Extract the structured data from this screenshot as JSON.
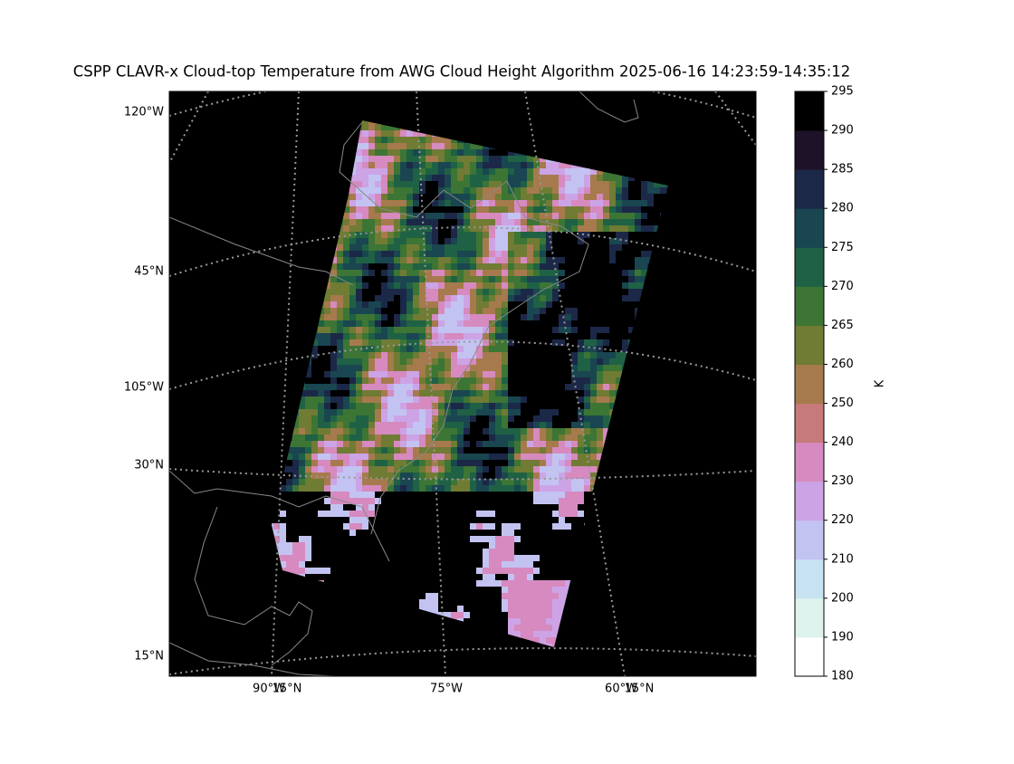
{
  "title": "CSPP CLAVR-x Cloud-top Temperature from AWG Cloud Height Algorithm 2025-06-16 14:23:59-14:35:12",
  "map_labels": [
    {
      "text": "120°W",
      "side": "left",
      "pos": 124
    },
    {
      "text": "45°N",
      "side": "left",
      "pos": 300
    },
    {
      "text": "105°W",
      "side": "left",
      "pos": 428
    },
    {
      "text": "30°N",
      "side": "left",
      "pos": 514
    },
    {
      "text": "15°N",
      "side": "left",
      "pos": 725
    },
    {
      "text": "90°W",
      "side": "bottom",
      "pos": 297
    },
    {
      "text": "15°N",
      "side": "bottom",
      "pos": 317
    },
    {
      "text": "75°W",
      "side": "bottom",
      "pos": 493
    },
    {
      "text": "60°W",
      "side": "bottom",
      "pos": 686
    },
    {
      "text": "15°N",
      "side": "bottom",
      "pos": 706
    }
  ],
  "colorbar": {
    "label": "K",
    "ticks": [
      180,
      190,
      200,
      210,
      220,
      230,
      240,
      250,
      260,
      265,
      270,
      275,
      280,
      285,
      290,
      295
    ],
    "colors": [
      "#ffffff",
      "#dff3ee",
      "#c7e3f2",
      "#c3c3f2",
      "#cca4e6",
      "#d68abf",
      "#c77a7a",
      "#a67a4d",
      "#707b34",
      "#3c7534",
      "#1f6145",
      "#194650",
      "#1c2848",
      "#1e1229",
      "#000000"
    ]
  }
}
